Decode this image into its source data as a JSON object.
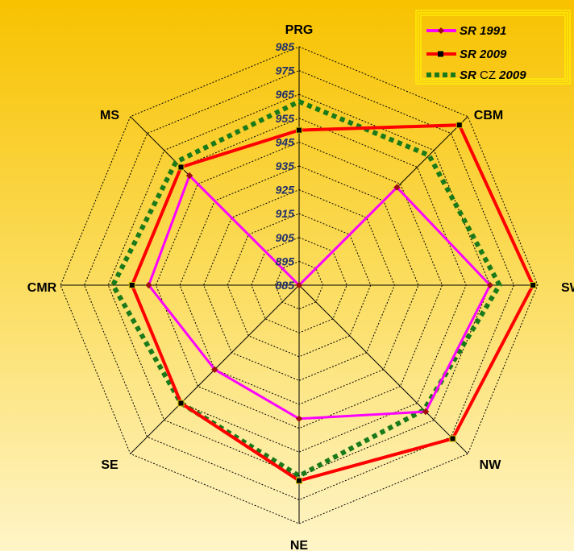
{
  "chart_data": {
    "type": "radar",
    "title": "",
    "axes": [
      "PRG",
      "CBM",
      "SW",
      "NW",
      "NE",
      "SE",
      "CMR",
      "MS"
    ],
    "r_range": [
      885,
      985
    ],
    "ticks": [
      885,
      895,
      905,
      915,
      925,
      935,
      945,
      955,
      965,
      975,
      985
    ],
    "grid": true,
    "legend_position": "top-right",
    "series": [
      {
        "name": "SR 1991",
        "name_parts": [
          "SR",
          " 1991"
        ],
        "color": "#ff00ff",
        "values": [
          885,
          943,
          965,
          960,
          941,
          935,
          948,
          950
        ]
      },
      {
        "name": "SR 2009",
        "name_parts": [
          "SR",
          " 2009"
        ],
        "color": "#ff0000",
        "values": [
          950,
          980,
          983,
          976,
          967,
          955,
          955,
          955
        ]
      },
      {
        "name": "SR CZ 2009",
        "name_parts": [
          "SR",
          " CZ",
          " 2009"
        ],
        "color": "#1a7a1a",
        "values": [
          962,
          962,
          969,
          959,
          965,
          955,
          963,
          958
        ]
      }
    ]
  }
}
